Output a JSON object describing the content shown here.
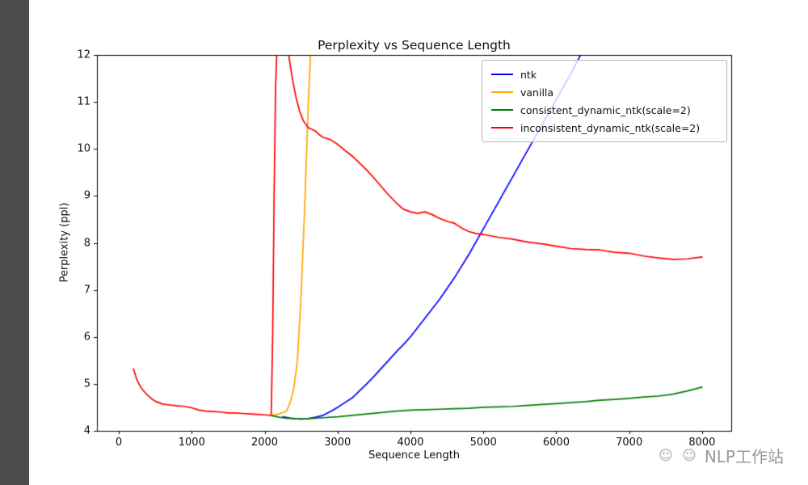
{
  "watermark": {
    "icons": "☺ ☺",
    "text": "NLP工作站"
  },
  "chart_data": {
    "type": "line",
    "title": "Perplexity vs Sequence Length",
    "xlabel": "Sequence Length",
    "ylabel": "Perplexity (ppl)",
    "xlim": [
      -300,
      8400
    ],
    "ylim": [
      4,
      12
    ],
    "xticks": [
      0,
      1000,
      2000,
      3000,
      4000,
      5000,
      6000,
      7000,
      8000
    ],
    "yticks": [
      4,
      5,
      6,
      7,
      8,
      9,
      10,
      11,
      12
    ],
    "grid": false,
    "legend_position": "upper right",
    "series": [
      {
        "name": "ntk",
        "color": "#0000ff",
        "points": [
          [
            2250,
            4.3
          ],
          [
            2350,
            4.27
          ],
          [
            2500,
            4.25
          ],
          [
            2600,
            4.26
          ],
          [
            2700,
            4.29
          ],
          [
            2800,
            4.33
          ],
          [
            2900,
            4.41
          ],
          [
            3000,
            4.5
          ],
          [
            3100,
            4.6
          ],
          [
            3200,
            4.7
          ],
          [
            3300,
            4.85
          ],
          [
            3400,
            5.0
          ],
          [
            3500,
            5.16
          ],
          [
            3600,
            5.33
          ],
          [
            3700,
            5.5
          ],
          [
            3800,
            5.67
          ],
          [
            3900,
            5.83
          ],
          [
            4000,
            6.0
          ],
          [
            4200,
            6.4
          ],
          [
            4400,
            6.8
          ],
          [
            4600,
            7.25
          ],
          [
            4800,
            7.75
          ],
          [
            5000,
            8.3
          ],
          [
            5200,
            8.85
          ],
          [
            5400,
            9.4
          ],
          [
            5600,
            9.95
          ],
          [
            5800,
            10.5
          ],
          [
            6000,
            11.05
          ],
          [
            6200,
            11.6
          ],
          [
            6350,
            12.05
          ],
          [
            6450,
            12.4
          ]
        ]
      },
      {
        "name": "vanilla",
        "color": "#ffa500",
        "points": [
          [
            2100,
            4.33
          ],
          [
            2200,
            4.36
          ],
          [
            2300,
            4.42
          ],
          [
            2350,
            4.6
          ],
          [
            2400,
            4.9
          ],
          [
            2450,
            5.5
          ],
          [
            2500,
            6.9
          ],
          [
            2550,
            8.8
          ],
          [
            2600,
            11.0
          ],
          [
            2640,
            12.4
          ]
        ]
      },
      {
        "name": "consistent_dynamic_ntk(scale=2)",
        "color": "#008000",
        "points": [
          [
            2100,
            4.32
          ],
          [
            2200,
            4.29
          ],
          [
            2300,
            4.27
          ],
          [
            2400,
            4.26
          ],
          [
            2500,
            4.25
          ],
          [
            2600,
            4.26
          ],
          [
            2700,
            4.27
          ],
          [
            2800,
            4.28
          ],
          [
            3000,
            4.3
          ],
          [
            3200,
            4.33
          ],
          [
            3400,
            4.36
          ],
          [
            3600,
            4.39
          ],
          [
            3800,
            4.42
          ],
          [
            4000,
            4.44
          ],
          [
            4200,
            4.45
          ],
          [
            4400,
            4.46
          ],
          [
            4600,
            4.47
          ],
          [
            4800,
            4.48
          ],
          [
            5000,
            4.5
          ],
          [
            5200,
            4.51
          ],
          [
            5400,
            4.52
          ],
          [
            5600,
            4.54
          ],
          [
            5800,
            4.56
          ],
          [
            6000,
            4.58
          ],
          [
            6200,
            4.6
          ],
          [
            6400,
            4.62
          ],
          [
            6600,
            4.65
          ],
          [
            6800,
            4.67
          ],
          [
            7000,
            4.69
          ],
          [
            7200,
            4.72
          ],
          [
            7400,
            4.74
          ],
          [
            7600,
            4.78
          ],
          [
            7800,
            4.85
          ],
          [
            8000,
            4.93
          ]
        ]
      },
      {
        "name": "inconsistent_dynamic_ntk(scale=2)",
        "color": "#ff0000",
        "points": [
          [
            200,
            5.32
          ],
          [
            250,
            5.08
          ],
          [
            300,
            4.93
          ],
          [
            350,
            4.83
          ],
          [
            400,
            4.75
          ],
          [
            450,
            4.68
          ],
          [
            500,
            4.63
          ],
          [
            550,
            4.6
          ],
          [
            600,
            4.57
          ],
          [
            700,
            4.55
          ],
          [
            800,
            4.53
          ],
          [
            900,
            4.52
          ],
          [
            1000,
            4.49
          ],
          [
            1100,
            4.44
          ],
          [
            1200,
            4.42
          ],
          [
            1300,
            4.41
          ],
          [
            1400,
            4.4
          ],
          [
            1500,
            4.38
          ],
          [
            1600,
            4.38
          ],
          [
            1700,
            4.37
          ],
          [
            1800,
            4.36
          ],
          [
            1900,
            4.35
          ],
          [
            2000,
            4.34
          ],
          [
            2090,
            4.33
          ],
          [
            2110,
            6.0
          ],
          [
            2130,
            9.0
          ],
          [
            2150,
            11.3
          ],
          [
            2175,
            12.4
          ],
          [
            2230,
            12.7
          ],
          [
            2300,
            12.5
          ],
          [
            2330,
            12.0
          ],
          [
            2380,
            11.5
          ],
          [
            2430,
            11.1
          ],
          [
            2480,
            10.8
          ],
          [
            2530,
            10.6
          ],
          [
            2600,
            10.45
          ],
          [
            2700,
            10.38
          ],
          [
            2750,
            10.3
          ],
          [
            2800,
            10.25
          ],
          [
            2900,
            10.2
          ],
          [
            3000,
            10.1
          ],
          [
            3100,
            9.97
          ],
          [
            3200,
            9.85
          ],
          [
            3300,
            9.7
          ],
          [
            3400,
            9.55
          ],
          [
            3500,
            9.38
          ],
          [
            3600,
            9.2
          ],
          [
            3700,
            9.02
          ],
          [
            3800,
            8.86
          ],
          [
            3900,
            8.72
          ],
          [
            4000,
            8.66
          ],
          [
            4100,
            8.63
          ],
          [
            4200,
            8.66
          ],
          [
            4300,
            8.6
          ],
          [
            4400,
            8.52
          ],
          [
            4500,
            8.46
          ],
          [
            4600,
            8.42
          ],
          [
            4700,
            8.32
          ],
          [
            4800,
            8.24
          ],
          [
            4900,
            8.2
          ],
          [
            5000,
            8.18
          ],
          [
            5200,
            8.12
          ],
          [
            5400,
            8.08
          ],
          [
            5600,
            8.02
          ],
          [
            5800,
            7.98
          ],
          [
            6000,
            7.93
          ],
          [
            6200,
            7.88
          ],
          [
            6400,
            7.86
          ],
          [
            6600,
            7.85
          ],
          [
            6800,
            7.8
          ],
          [
            7000,
            7.78
          ],
          [
            7200,
            7.72
          ],
          [
            7400,
            7.68
          ],
          [
            7600,
            7.65
          ],
          [
            7800,
            7.66
          ],
          [
            8000,
            7.7
          ]
        ]
      }
    ]
  }
}
